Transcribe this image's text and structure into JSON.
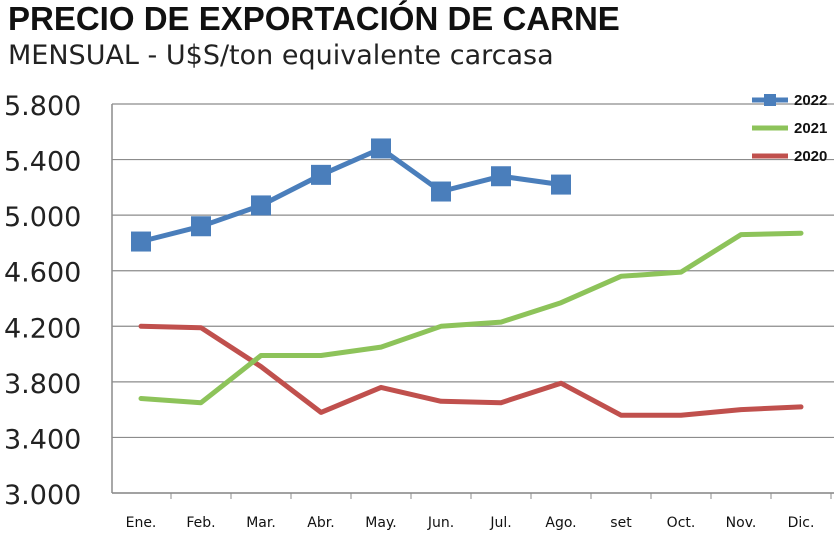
{
  "title": "PRECIO DE EXPORTACIÓN DE CARNE",
  "subtitle": "MENSUAL - U$S/ton equivalente carcasa",
  "chart_data": {
    "type": "line",
    "title": "PRECIO DE EXPORTACIÓN DE CARNE",
    "subtitle": "MENSUAL - U$S/ton equivalente carcasa",
    "categories": [
      "Ene.",
      "Feb.",
      "Mar.",
      "Abr.",
      "May.",
      "Jun.",
      "Jul.",
      "Ago.",
      "set",
      "Oct.",
      "Nov.",
      "Dic."
    ],
    "yticks": [
      "3.000",
      "3.400",
      "3.800",
      "4.200",
      "4.600",
      "5.000",
      "5.400",
      "5.800"
    ],
    "ylim": [
      3000,
      5800
    ],
    "grid": true,
    "legend_position": "top-right",
    "series": [
      {
        "name": "2022",
        "color": "#4a7ebb",
        "marker": "square",
        "values": [
          4810,
          4920,
          5070,
          5290,
          5480,
          5170,
          5280,
          5220,
          null,
          null,
          null,
          null
        ]
      },
      {
        "name": "2021",
        "color": "#8dc35a",
        "marker": "none",
        "values": [
          3680,
          3650,
          3990,
          3990,
          4050,
          4200,
          4230,
          4370,
          4560,
          4590,
          4860,
          4870
        ]
      },
      {
        "name": "2020",
        "color": "#c0504d",
        "marker": "none",
        "values": [
          4200,
          4190,
          3910,
          3580,
          3760,
          3660,
          3650,
          3790,
          3560,
          3560,
          3600,
          3620
        ]
      }
    ]
  }
}
